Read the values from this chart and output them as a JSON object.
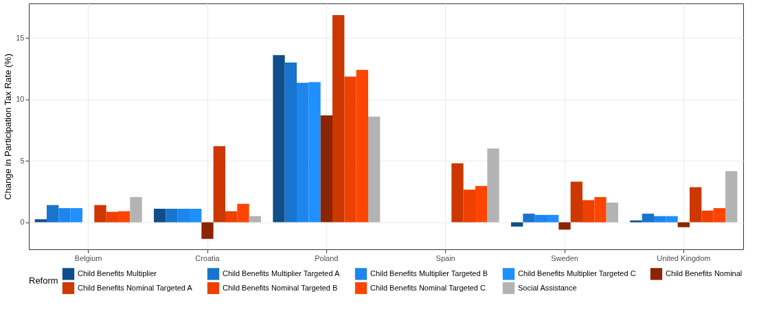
{
  "chart_data": {
    "type": "bar",
    "ylabel": "Change in Participation Tax Rate (%)",
    "legend_title": "Reform",
    "categories": [
      "Belgium",
      "Croatia",
      "Poland",
      "Spain",
      "Sweden",
      "United Kingdom"
    ],
    "series": [
      {
        "name": "Child Benefits Multiplier",
        "color": "#104e8b",
        "values": [
          0.25,
          1.1,
          13.6,
          null,
          -0.35,
          0.15
        ]
      },
      {
        "name": "Child Benefits Multiplier Targeted A",
        "color": "#1874cd",
        "values": [
          1.4,
          1.1,
          13.0,
          null,
          0.7,
          0.7
        ]
      },
      {
        "name": "Child Benefits Multiplier Targeted B",
        "color": "#1c86ee",
        "values": [
          1.15,
          1.1,
          11.35,
          null,
          0.6,
          0.5
        ]
      },
      {
        "name": "Child Benefits Multiplier Targeted C",
        "color": "#1e90ff",
        "values": [
          1.15,
          1.1,
          11.4,
          null,
          0.6,
          0.5
        ]
      },
      {
        "name": "Child Benefits Nominal",
        "color": "#8b2500",
        "values": [
          null,
          -1.35,
          8.7,
          null,
          -0.6,
          -0.4
        ]
      },
      {
        "name": "Child Benefits Nominal Targeted A",
        "color": "#cd3700",
        "values": [
          1.4,
          6.2,
          16.85,
          4.8,
          3.3,
          2.85
        ]
      },
      {
        "name": "Child Benefits Nominal Targeted B",
        "color": "#ee4000",
        "values": [
          0.85,
          0.9,
          11.85,
          2.65,
          1.8,
          0.95
        ]
      },
      {
        "name": "Child Benefits Nominal Targeted C",
        "color": "#ff4500",
        "values": [
          0.9,
          1.5,
          12.4,
          2.95,
          2.05,
          1.15
        ]
      },
      {
        "name": "Social Assistance",
        "color": "#b3b3b3",
        "values": [
          2.05,
          0.5,
          8.6,
          6.0,
          1.6,
          4.15
        ]
      }
    ],
    "ylim": [
      -2.2,
      17.8
    ],
    "yticks": [
      0,
      5,
      10,
      15
    ],
    "grid": true,
    "legend": "bottom"
  }
}
